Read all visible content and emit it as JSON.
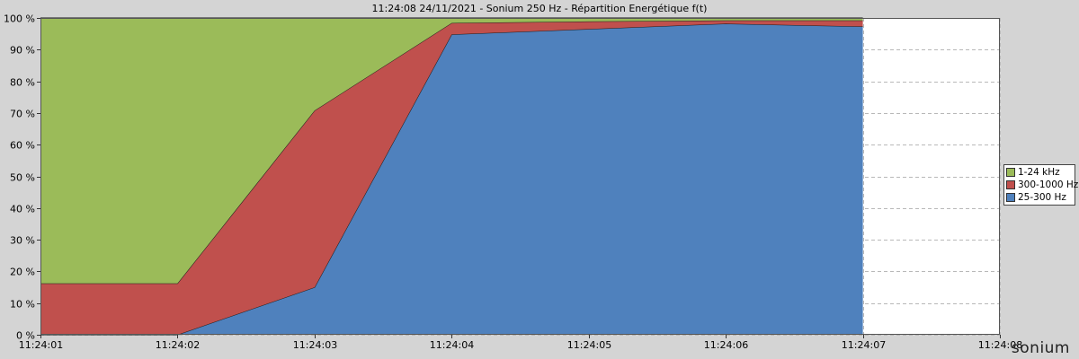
{
  "chart_data": {
    "type": "area",
    "stacked": true,
    "title": "11:24:08 24/11/2021 - Sonium 250 Hz - Répartition Energétique f(t)",
    "x": [
      "11:24:01",
      "11:24:02",
      "11:24:03",
      "11:24:04",
      "11:24:05",
      "11:24:06",
      "11:24:07"
    ],
    "x_ticks": [
      "11:24:01",
      "11:24:02",
      "11:24:03",
      "11:24:04",
      "11:24:05",
      "11:24:06",
      "11:24:07",
      "11:24:08"
    ],
    "y_ticks": [
      "0 %",
      "10 %",
      "20 %",
      "30 %",
      "40 %",
      "50 %",
      "60 %",
      "70 %",
      "80 %",
      "90 %",
      "100 %"
    ],
    "ylim": [
      0,
      100
    ],
    "xlim_index": [
      0,
      7
    ],
    "grid": true,
    "legend_position": "right",
    "series": [
      {
        "name": "25-300 Hz",
        "color": "#4f81bd",
        "values": [
          0,
          0,
          15,
          94.8,
          96.5,
          98.2,
          97.3
        ]
      },
      {
        "name": "300-1000 Hz",
        "color": "#c0504d",
        "values": [
          16.2,
          16.2,
          55.8,
          3.6,
          2.4,
          1.0,
          1.9
        ]
      },
      {
        "name": "1-24 kHz",
        "color": "#9bbb59",
        "values": [
          83.8,
          83.8,
          29.2,
          1.6,
          1.1,
          0.8,
          0.8
        ]
      }
    ],
    "legend_order": [
      "1-24 kHz",
      "300-1000 Hz",
      "25-300 Hz"
    ]
  },
  "brand": {
    "text": "sonium"
  }
}
